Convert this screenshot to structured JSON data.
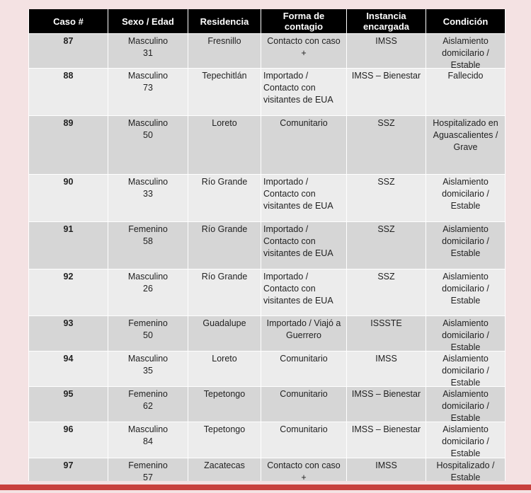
{
  "headers": [
    "Caso #",
    "Sexo / Edad",
    "Residencia",
    "Forma de contagio",
    "Instancia encargada",
    "Condición"
  ],
  "rows": [
    {
      "caso": "87",
      "sexo": "Masculino",
      "edad": "31",
      "residencia": "Fresnillo",
      "forma": "Contacto con caso +",
      "instancia": "IMSS",
      "condicion": "Aislamiento domicilario / Estable"
    },
    {
      "caso": "88",
      "sexo": "Masculino",
      "edad": "73",
      "residencia": "Tepechitlán",
      "forma": "Importado / Contacto con visitantes de EUA",
      "instancia": "IMSS – Bienestar",
      "condicion": "Fallecido"
    },
    {
      "caso": "89",
      "sexo": "Masculino",
      "edad": "50",
      "residencia": "Loreto",
      "forma": "Comunitario",
      "instancia": "SSZ",
      "condicion": "Hospitalizado en Aguascalientes / Grave"
    },
    {
      "caso": "90",
      "sexo": "Masculino",
      "edad": "33",
      "residencia": "Río Grande",
      "forma": "Importado / Contacto con visitantes de EUA",
      "instancia": "SSZ",
      "condicion": "Aislamiento domicilario / Estable"
    },
    {
      "caso": "91",
      "sexo": "Femenino",
      "edad": "58",
      "residencia": "Río Grande",
      "forma": "Importado / Contacto con visitantes de EUA",
      "instancia": "SSZ",
      "condicion": "Aislamiento domicilario / Estable"
    },
    {
      "caso": "92",
      "sexo": "Masculino",
      "edad": "26",
      "residencia": "Río Grande",
      "forma": "Importado / Contacto con visitantes de EUA",
      "instancia": "SSZ",
      "condicion": "Aislamiento domicilario / Estable"
    },
    {
      "caso": "93",
      "sexo": "Femenino",
      "edad": "50",
      "residencia": "Guadalupe",
      "forma": "Importado / Viajó a Guerrero",
      "instancia": "ISSSTE",
      "condicion": "Aislamiento domicilario / Estable"
    },
    {
      "caso": "94",
      "sexo": "Masculino",
      "edad": "35",
      "residencia": "Loreto",
      "forma": "Comunitario",
      "instancia": "IMSS",
      "condicion": "Aislamiento domicilario / Estable"
    },
    {
      "caso": "95",
      "sexo": "Femenino",
      "edad": "62",
      "residencia": "Tepetongo",
      "forma": "Comunitario",
      "instancia": "IMSS – Bienestar",
      "condicion": "Aislamiento domicilario / Estable"
    },
    {
      "caso": "96",
      "sexo": "Masculino",
      "edad": "84",
      "residencia": "Tepetongo",
      "forma": "Comunitario",
      "instancia": "IMSS – Bienestar",
      "condicion": "Aislamiento domicilario / Estable"
    },
    {
      "caso": "97",
      "sexo": "Femenino",
      "edad": "57",
      "residencia": "Zacatecas",
      "forma": "Contacto con caso +",
      "instancia": "IMSS",
      "condicion": "Hospitalizado / Estable"
    }
  ],
  "colors": {
    "header_bg": "#000000",
    "row_dark": "#d6d6d6",
    "row_light": "#ececec",
    "accent_bar": "#c8403d",
    "page_bg": "#f4e2e3"
  }
}
